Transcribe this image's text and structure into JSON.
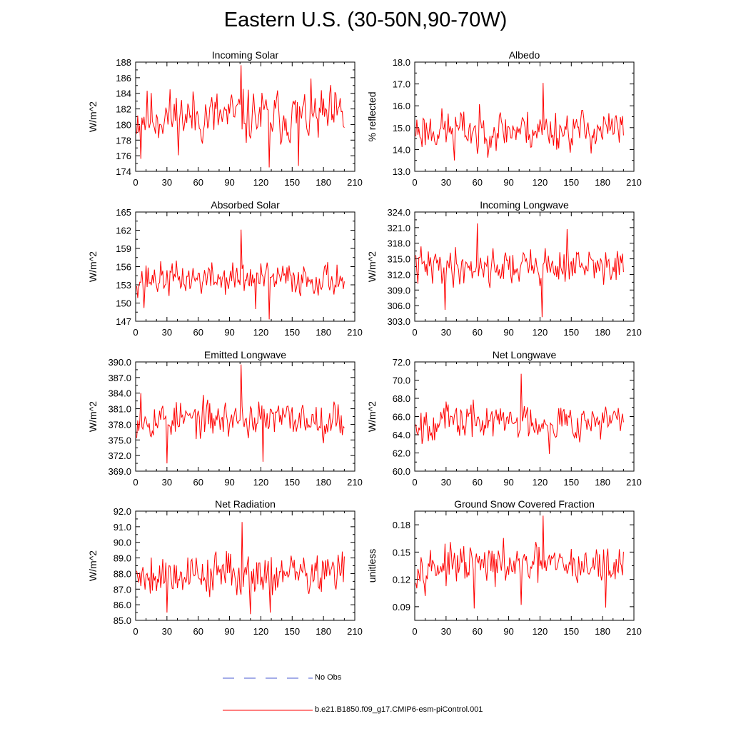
{
  "title": "Eastern U.S. (30-50N,90-70W)",
  "colors": {
    "model_line": "#ff0000",
    "obs_line": "#4a5bd0",
    "axis": "#000000"
  },
  "legend": {
    "obs_label": "No Obs",
    "model_label": "b.e21.B1850.f09_g17.CMIP6-esm-piControl.001"
  },
  "chart_data": [
    {
      "type": "line",
      "title": "Incoming Solar",
      "ylabel": "W/m^2",
      "xlim": [
        0,
        210
      ],
      "xticks": [
        0,
        30,
        60,
        90,
        120,
        150,
        180,
        210
      ],
      "ylim": [
        174,
        188
      ],
      "yticks": [
        174,
        176,
        178,
        180,
        182,
        184,
        186,
        188
      ],
      "ydec": 0,
      "series": [
        {
          "name": "b.e21.B1850.f09_g17.CMIP6-esm-piControl.001",
          "x_start": 1,
          "x_step": 1,
          "seed": 11,
          "mean": 181.0,
          "amp": 3.0,
          "min": 174.5,
          "max": 186.5,
          "spikes": [
            [
              100,
              187.6
            ],
            [
              127,
              174.5
            ],
            [
              155,
              174.7
            ],
            [
              4,
              175.6
            ]
          ]
        }
      ]
    },
    {
      "type": "line",
      "title": "Albedo",
      "ylabel": "% reflected",
      "xlim": [
        0,
        210
      ],
      "xticks": [
        0,
        30,
        60,
        90,
        120,
        150,
        180,
        210
      ],
      "ylim": [
        13.0,
        18.0
      ],
      "yticks": [
        13.0,
        14.0,
        15.0,
        16.0,
        17.0,
        18.0
      ],
      "ydec": 1,
      "series": [
        {
          "name": "b.e21.B1850.f09_g17.CMIP6-esm-piControl.001",
          "x_start": 1,
          "x_step": 1,
          "seed": 23,
          "mean": 14.9,
          "amp": 0.8,
          "min": 13.5,
          "max": 16.7,
          "spikes": [
            [
              122,
              17.05
            ],
            [
              37,
              13.5
            ],
            [
              59,
              13.8
            ]
          ]
        }
      ]
    },
    {
      "type": "line",
      "title": "Absorbed Solar",
      "ylabel": "W/m^2",
      "xlim": [
        0,
        210
      ],
      "xticks": [
        0,
        30,
        60,
        90,
        120,
        150,
        180,
        210
      ],
      "ylim": [
        147,
        165
      ],
      "yticks": [
        147,
        150,
        153,
        156,
        159,
        162,
        165
      ],
      "ydec": 0,
      "series": [
        {
          "name": "b.e21.B1850.f09_g17.CMIP6-esm-piControl.001",
          "x_start": 1,
          "x_step": 1,
          "seed": 37,
          "mean": 154.0,
          "amp": 2.3,
          "min": 148.5,
          "max": 159.5,
          "spikes": [
            [
              100,
              162.1
            ],
            [
              127,
              147.3
            ],
            [
              7,
              149.2
            ],
            [
              114,
              149.0
            ]
          ]
        }
      ]
    },
    {
      "type": "line",
      "title": "Incoming Longwave",
      "ylabel": "W/m^2",
      "xlim": [
        0,
        210
      ],
      "xticks": [
        0,
        30,
        60,
        90,
        120,
        150,
        180,
        210
      ],
      "ylim": [
        303.0,
        324.0
      ],
      "yticks": [
        303.0,
        306.0,
        309.0,
        312.0,
        315.0,
        318.0,
        321.0,
        324.0
      ],
      "ydec": 1,
      "series": [
        {
          "name": "b.e21.B1850.f09_g17.CMIP6-esm-piControl.001",
          "x_start": 1,
          "x_step": 1,
          "seed": 41,
          "mean": 313.5,
          "amp": 3.0,
          "min": 306.5,
          "max": 320.5,
          "spikes": [
            [
              59,
              321.8
            ],
            [
              121,
              303.8
            ],
            [
              28,
              305.2
            ],
            [
              145,
              320.7
            ]
          ]
        }
      ]
    },
    {
      "type": "line",
      "title": "Emitted Longwave",
      "ylabel": "W/m^2",
      "xlim": [
        0,
        210
      ],
      "xticks": [
        0,
        30,
        60,
        90,
        120,
        150,
        180,
        210
      ],
      "ylim": [
        369.0,
        390.0
      ],
      "yticks": [
        369.0,
        372.0,
        375.0,
        378.0,
        381.0,
        384.0,
        387.0,
        390.0
      ],
      "ydec": 1,
      "series": [
        {
          "name": "b.e21.B1850.f09_g17.CMIP6-esm-piControl.001",
          "x_start": 1,
          "x_step": 1,
          "seed": 53,
          "mean": 379.0,
          "amp": 3.0,
          "min": 372.5,
          "max": 386.0,
          "spikes": [
            [
              100,
              389.5
            ],
            [
              29,
              370.5
            ],
            [
              121,
              370.8
            ],
            [
              4,
              384.0
            ]
          ]
        }
      ]
    },
    {
      "type": "line",
      "title": "Net Longwave",
      "ylabel": "W/m^2",
      "xlim": [
        0,
        210
      ],
      "xticks": [
        0,
        30,
        60,
        90,
        120,
        150,
        180,
        210
      ],
      "ylim": [
        60.0,
        72.0
      ],
      "yticks": [
        60.0,
        62.0,
        64.0,
        66.0,
        68.0,
        70.0,
        72.0
      ],
      "ydec": 1,
      "series": [
        {
          "name": "b.e21.B1850.f09_g17.CMIP6-esm-piControl.001",
          "x_start": 1,
          "x_step": 1,
          "seed": 67,
          "mean": 65.5,
          "amp": 1.7,
          "min": 62.5,
          "max": 69.0,
          "spikes": [
            [
              101,
              70.7
            ],
            [
              128,
              61.9
            ],
            [
              6,
              63.0
            ]
          ]
        }
      ]
    },
    {
      "type": "line",
      "title": "Net Radiation",
      "ylabel": "W/m^2",
      "xlim": [
        0,
        210
      ],
      "xticks": [
        0,
        30,
        60,
        90,
        120,
        150,
        180,
        210
      ],
      "ylim": [
        85.0,
        92.0
      ],
      "yticks": [
        85.0,
        86.0,
        87.0,
        88.0,
        89.0,
        90.0,
        91.0,
        92.0
      ],
      "ydec": 1,
      "series": [
        {
          "name": "b.e21.B1850.f09_g17.CMIP6-esm-piControl.001",
          "x_start": 1,
          "x_step": 1,
          "seed": 79,
          "mean": 88.0,
          "amp": 1.2,
          "min": 85.6,
          "max": 90.8,
          "spikes": [
            [
              101,
              91.3
            ],
            [
              109,
              85.4
            ],
            [
              128,
              85.5
            ],
            [
              29,
              85.5
            ]
          ]
        }
      ]
    },
    {
      "type": "line",
      "title": "Ground Snow Covered Fraction",
      "ylabel": "unitless",
      "xlim": [
        0,
        210
      ],
      "xticks": [
        0,
        30,
        60,
        90,
        120,
        150,
        180,
        210
      ],
      "ylim": [
        0.075,
        0.195
      ],
      "yticks": [
        0.09,
        0.12,
        0.15,
        0.18
      ],
      "ydec": 2,
      "series": [
        {
          "name": "b.e21.B1850.f09_g17.CMIP6-esm-piControl.001",
          "x_start": 1,
          "x_step": 1,
          "seed": 97,
          "mean": 0.135,
          "amp": 0.018,
          "min": 0.095,
          "max": 0.172,
          "spikes": [
            [
              122,
              0.19
            ],
            [
              56,
              0.088
            ],
            [
              101,
              0.092
            ],
            [
              182,
              0.089
            ]
          ]
        }
      ]
    }
  ]
}
